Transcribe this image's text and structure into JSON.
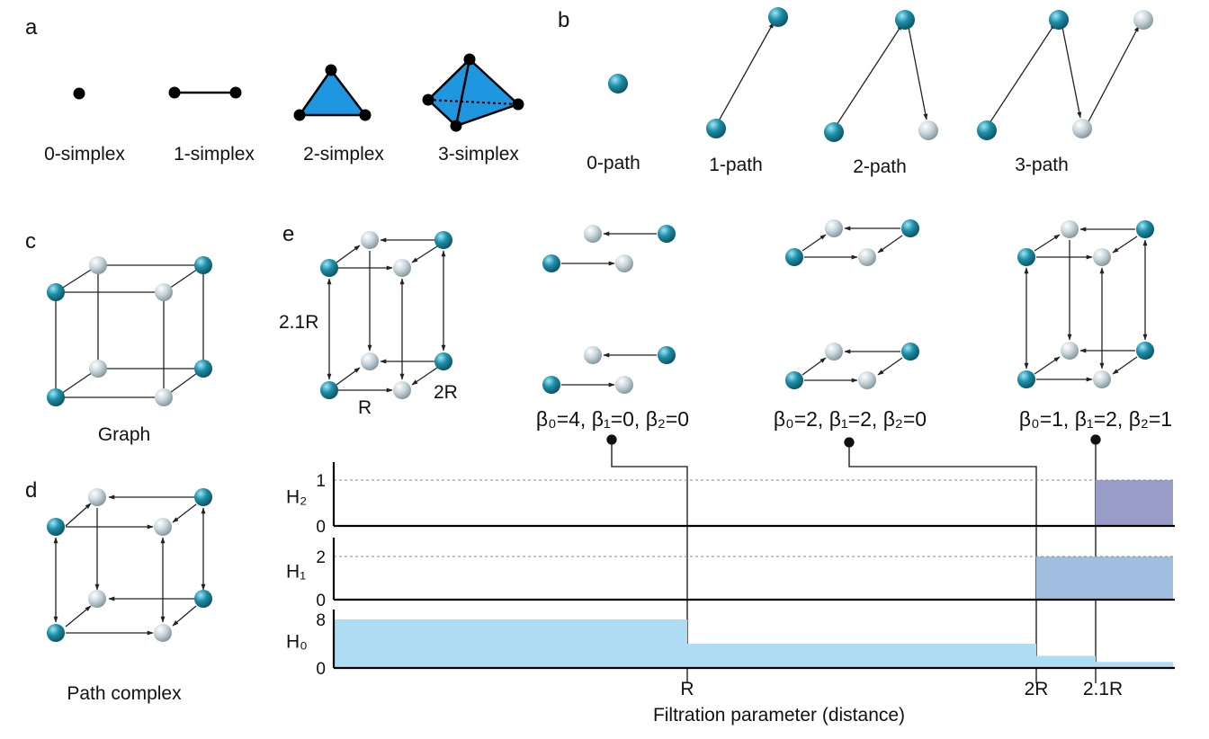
{
  "panels": {
    "a": {
      "letter": "a",
      "labels": [
        "0-simplex",
        "1-simplex",
        "2-simplex",
        "3-simplex"
      ]
    },
    "b": {
      "letter": "b",
      "labels": [
        "0-path",
        "1-path",
        "2-path",
        "3-path"
      ]
    },
    "c": {
      "letter": "c",
      "caption": "Graph"
    },
    "d": {
      "letter": "d",
      "caption": "Path complex"
    },
    "e": {
      "letter": "e",
      "cube_labels": {
        "height": "2.1R",
        "width": "R",
        "depth": "2R"
      },
      "betti": [
        "β₀=4, β₁=0, β₂=0",
        "β₀=2, β₁=2, β₂=0",
        "β₀=1, β₁=2, β₂=1"
      ]
    }
  },
  "chart_data": {
    "type": "bar",
    "title": "",
    "xlabel": "Filtration parameter (distance)",
    "xticks": [
      "R",
      "2R",
      "2.1R"
    ],
    "x_range": [
      "0",
      "2.1R+"
    ],
    "rows": [
      {
        "name": "H₂",
        "ylim": [
          0,
          1
        ],
        "yticks": [
          0,
          1
        ],
        "dashed_at": 1,
        "color": "#9a9cc8",
        "segments": [
          {
            "from": "2.1R",
            "to": "end",
            "value": 1
          }
        ]
      },
      {
        "name": "H₁",
        "ylim": [
          0,
          2
        ],
        "yticks": [
          0,
          2
        ],
        "dashed_at": 2,
        "color": "#a0bfe0",
        "segments": [
          {
            "from": "2R",
            "to": "end",
            "value": 2
          }
        ]
      },
      {
        "name": "H₀",
        "ylim": [
          0,
          8
        ],
        "yticks": [
          0,
          8
        ],
        "dashed_at": null,
        "color": "#aedcf2",
        "segments": [
          {
            "from": "0",
            "to": "R",
            "value": 8
          },
          {
            "from": "R",
            "to": "2R",
            "value": 4
          },
          {
            "from": "2R",
            "to": "2.1R",
            "value": 2
          },
          {
            "from": "2.1R",
            "to": "end",
            "value": 1
          }
        ]
      }
    ]
  },
  "colors": {
    "teal": "#1e8fa8",
    "silver": "#b8c6cc",
    "simplex_fill": "#1f97e0"
  }
}
